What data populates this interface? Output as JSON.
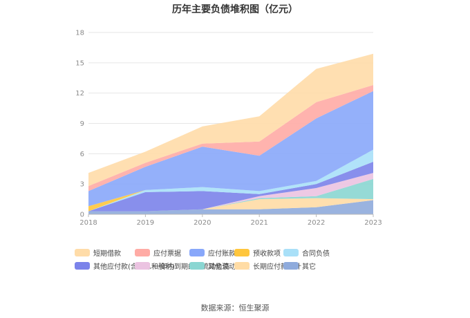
{
  "title": "历年主要负债堆积图（亿元）",
  "source": "数据来源：恒生聚源",
  "chart_data": {
    "type": "area",
    "stacked": true,
    "title": "历年主要负债堆积图（亿元）",
    "x": [
      "2018",
      "2019",
      "2020",
      "2021",
      "2022",
      "2023"
    ],
    "ylim": [
      0,
      18
    ],
    "yticks": [
      "0",
      "3",
      "6",
      "9",
      "12",
      "15",
      "18"
    ],
    "grid": true,
    "legend_position": "bottom",
    "series": [
      {
        "name": "其它",
        "color": "#8fabdc",
        "values": [
          0.3,
          0.3,
          0.5,
          0.5,
          0.7,
          1.4
        ]
      },
      {
        "name": "长期应付款合计",
        "color": "#ffdca5",
        "values": [
          0.0,
          0.0,
          0.0,
          1.0,
          0.9,
          0.1
        ]
      },
      {
        "name": "其他流动负债",
        "color": "#8ad6d2",
        "values": [
          0.0,
          0.0,
          0.0,
          0.1,
          0.2,
          2.0
        ]
      },
      {
        "name": "一年内到期的非流动负债",
        "color": "#ebc3e1",
        "values": [
          0.0,
          0.0,
          0.0,
          0.2,
          0.8,
          0.6
        ]
      },
      {
        "name": "其他应付款(含利息和股利)",
        "color": "#7b83ea",
        "values": [
          0.0,
          1.9,
          1.8,
          0.2,
          0.4,
          1.1
        ]
      },
      {
        "name": "合同负债",
        "color": "#a9e0f8",
        "values": [
          0.0,
          0.2,
          0.4,
          0.3,
          0.3,
          1.2
        ]
      },
      {
        "name": "预收款项",
        "color": "#ffc63d",
        "values": [
          0.5,
          0.0,
          0.0,
          0.0,
          0.0,
          0.0
        ]
      },
      {
        "name": "应付账款",
        "color": "#88a7fa",
        "values": [
          1.5,
          2.3,
          4.0,
          3.5,
          6.2,
          5.8
        ]
      },
      {
        "name": "应付票据",
        "color": "#ffaba5",
        "values": [
          0.5,
          0.4,
          0.3,
          1.4,
          1.6,
          0.6
        ]
      },
      {
        "name": "短期借款",
        "color": "#ffdca8",
        "values": [
          1.3,
          1.1,
          1.7,
          2.5,
          3.3,
          3.1
        ]
      }
    ],
    "legend_order": [
      "短期借款",
      "应付票据",
      "应付账款",
      "预收款项",
      "合同负债",
      "其他应付款(含利息和股利)",
      "一年内到期的非流动负债",
      "其他流动负债",
      "长期应付款合计",
      "其它"
    ]
  }
}
